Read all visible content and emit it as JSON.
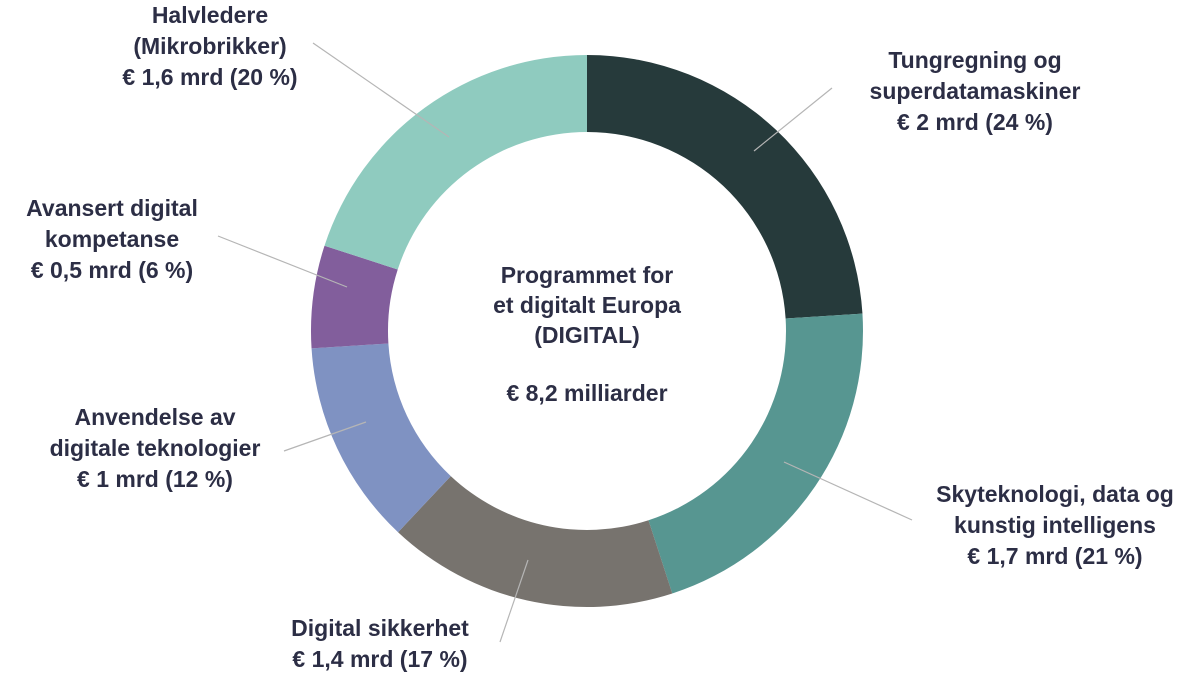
{
  "chart_data": {
    "type": "pie",
    "variant": "donut",
    "center_title": [
      "Programmet for",
      "et digitalt Europa",
      "(DIGITAL)"
    ],
    "center_total": "€ 8,2 milliarder",
    "slices": [
      {
        "name": "Tungregning og superdatamaskiner",
        "label_lines": [
          "Tungregning og",
          "superdatamaskiner"
        ],
        "value_label": "€ 2 mrd (24 %)",
        "value": 2.0,
        "percent": 24,
        "color": "#263a3b"
      },
      {
        "name": "Skyteknologi, data og kunstig intelligens",
        "label_lines": [
          "Skyteknologi, data og",
          "kunstig intelligens"
        ],
        "value_label": "€ 1,7 mrd (21 %)",
        "value": 1.7,
        "percent": 21,
        "color": "#579691"
      },
      {
        "name": "Digital sikkerhet",
        "label_lines": [
          "Digital sikkerhet"
        ],
        "value_label": "€ 1,4 mrd (17 %)",
        "value": 1.4,
        "percent": 17,
        "color": "#77736e"
      },
      {
        "name": "Anvendelse av digitale teknologier",
        "label_lines": [
          "Anvendelse av",
          "digitale teknologier"
        ],
        "value_label": "€ 1 mrd (12 %)",
        "value": 1.0,
        "percent": 12,
        "color": "#7f92c2"
      },
      {
        "name": "Avansert digital kompetanse",
        "label_lines": [
          "Avansert digital",
          "kompetanse"
        ],
        "value_label": "€ 0,5 mrd (6 %)",
        "value": 0.5,
        "percent": 6,
        "color": "#825e9c"
      },
      {
        "name": "Halvledere (Mikrobrikker)",
        "label_lines": [
          "Halvledere",
          "(Mikrobrikker)"
        ],
        "value_label": "€ 1,6 mrd (20 %)",
        "value": 1.6,
        "percent": 20,
        "color": "#8fcbbf"
      }
    ]
  }
}
